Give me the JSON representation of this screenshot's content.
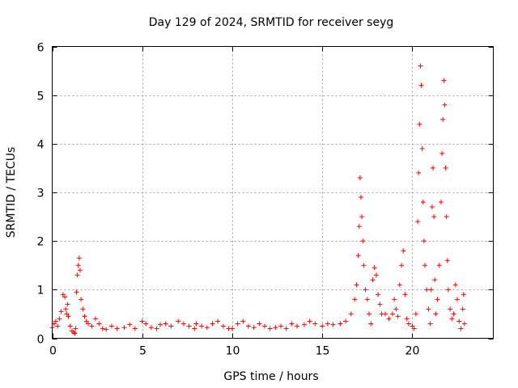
{
  "chart_data": {
    "type": "scatter",
    "title": "Day 129 of 2024, SRMTID for receiver seyg",
    "xlabel": "GPS time / hours",
    "ylabel": "SRMTID / TECUs",
    "xlim": [
      0,
      24.5
    ],
    "ylim": [
      0,
      6
    ],
    "xticks": [
      0,
      5,
      10,
      15,
      20
    ],
    "yticks": [
      0,
      1,
      2,
      3,
      4,
      5,
      6
    ],
    "xtick_labels": [
      "0",
      "5",
      "10",
      "15",
      "20"
    ],
    "ytick_labels": [
      "0",
      "1",
      "2",
      "3",
      "4",
      "5",
      "6"
    ],
    "grid": true,
    "marker": "plus",
    "color": "#ff0000",
    "series": [
      {
        "name": "SRMTID",
        "points": [
          [
            0.0,
            0.22
          ],
          [
            0.1,
            0.3
          ],
          [
            0.2,
            0.35
          ],
          [
            0.3,
            0.25
          ],
          [
            0.4,
            0.4
          ],
          [
            0.5,
            0.55
          ],
          [
            0.6,
            0.9
          ],
          [
            0.7,
            0.85
          ],
          [
            0.75,
            0.6
          ],
          [
            0.8,
            0.5
          ],
          [
            0.85,
            0.7
          ],
          [
            0.9,
            0.45
          ],
          [
            1.0,
            0.25
          ],
          [
            1.1,
            0.15
          ],
          [
            1.2,
            0.12
          ],
          [
            1.25,
            0.1
          ],
          [
            1.3,
            0.2
          ],
          [
            1.35,
            0.95
          ],
          [
            1.4,
            1.3
          ],
          [
            1.45,
            1.5
          ],
          [
            1.5,
            1.65
          ],
          [
            1.55,
            1.4
          ],
          [
            1.6,
            0.8
          ],
          [
            1.7,
            0.6
          ],
          [
            1.8,
            0.45
          ],
          [
            1.9,
            0.35
          ],
          [
            2.0,
            0.3
          ],
          [
            2.2,
            0.25
          ],
          [
            2.4,
            0.4
          ],
          [
            2.6,
            0.3
          ],
          [
            2.8,
            0.2
          ],
          [
            3.0,
            0.18
          ],
          [
            3.3,
            0.25
          ],
          [
            3.6,
            0.2
          ],
          [
            4.0,
            0.22
          ],
          [
            4.3,
            0.28
          ],
          [
            4.6,
            0.2
          ],
          [
            5.0,
            0.35
          ],
          [
            5.2,
            0.3
          ],
          [
            5.5,
            0.22
          ],
          [
            5.8,
            0.2
          ],
          [
            6.0,
            0.28
          ],
          [
            6.3,
            0.3
          ],
          [
            6.6,
            0.25
          ],
          [
            7.0,
            0.35
          ],
          [
            7.3,
            0.3
          ],
          [
            7.6,
            0.25
          ],
          [
            7.9,
            0.2
          ],
          [
            8.0,
            0.3
          ],
          [
            8.3,
            0.25
          ],
          [
            8.6,
            0.22
          ],
          [
            8.9,
            0.3
          ],
          [
            9.2,
            0.35
          ],
          [
            9.5,
            0.25
          ],
          [
            9.8,
            0.2
          ],
          [
            10.0,
            0.2
          ],
          [
            10.3,
            0.3
          ],
          [
            10.6,
            0.35
          ],
          [
            10.9,
            0.25
          ],
          [
            11.2,
            0.22
          ],
          [
            11.5,
            0.3
          ],
          [
            11.8,
            0.25
          ],
          [
            12.1,
            0.2
          ],
          [
            12.4,
            0.22
          ],
          [
            12.7,
            0.25
          ],
          [
            13.0,
            0.2
          ],
          [
            13.3,
            0.3
          ],
          [
            13.6,
            0.25
          ],
          [
            14.0,
            0.28
          ],
          [
            14.3,
            0.35
          ],
          [
            14.6,
            0.3
          ],
          [
            15.0,
            0.25
          ],
          [
            15.3,
            0.3
          ],
          [
            15.6,
            0.28
          ],
          [
            16.0,
            0.3
          ],
          [
            16.3,
            0.35
          ],
          [
            16.6,
            0.5
          ],
          [
            16.8,
            0.8
          ],
          [
            16.9,
            1.1
          ],
          [
            17.0,
            1.7
          ],
          [
            17.05,
            2.3
          ],
          [
            17.1,
            3.3
          ],
          [
            17.15,
            2.9
          ],
          [
            17.2,
            2.5
          ],
          [
            17.25,
            2.0
          ],
          [
            17.3,
            1.5
          ],
          [
            17.4,
            1.0
          ],
          [
            17.5,
            0.8
          ],
          [
            17.6,
            0.5
          ],
          [
            17.7,
            0.3
          ],
          [
            17.8,
            1.2
          ],
          [
            17.9,
            1.45
          ],
          [
            18.0,
            1.3
          ],
          [
            18.1,
            0.9
          ],
          [
            18.2,
            0.7
          ],
          [
            18.3,
            0.5
          ],
          [
            18.5,
            0.5
          ],
          [
            18.7,
            0.4
          ],
          [
            18.9,
            0.5
          ],
          [
            19.0,
            0.8
          ],
          [
            19.1,
            0.6
          ],
          [
            19.2,
            0.45
          ],
          [
            19.3,
            1.1
          ],
          [
            19.4,
            1.5
          ],
          [
            19.5,
            1.8
          ],
          [
            19.6,
            0.9
          ],
          [
            19.7,
            0.4
          ],
          [
            19.8,
            0.3
          ],
          [
            20.0,
            0.25
          ],
          [
            20.1,
            0.2
          ],
          [
            20.2,
            0.5
          ],
          [
            20.3,
            2.4
          ],
          [
            20.35,
            3.4
          ],
          [
            20.4,
            4.4
          ],
          [
            20.45,
            5.6
          ],
          [
            20.5,
            5.2
          ],
          [
            20.55,
            3.9
          ],
          [
            20.6,
            2.8
          ],
          [
            20.65,
            2.0
          ],
          [
            20.7,
            1.5
          ],
          [
            20.8,
            1.0
          ],
          [
            20.9,
            0.6
          ],
          [
            21.0,
            0.3
          ],
          [
            21.05,
            1.0
          ],
          [
            21.1,
            2.7
          ],
          [
            21.15,
            3.5
          ],
          [
            21.2,
            2.5
          ],
          [
            21.25,
            1.2
          ],
          [
            21.3,
            0.5
          ],
          [
            21.4,
            0.8
          ],
          [
            21.5,
            1.5
          ],
          [
            21.6,
            2.8
          ],
          [
            21.65,
            3.8
          ],
          [
            21.7,
            4.5
          ],
          [
            21.75,
            5.3
          ],
          [
            21.8,
            4.8
          ],
          [
            21.85,
            3.5
          ],
          [
            21.9,
            2.5
          ],
          [
            21.95,
            1.6
          ],
          [
            22.0,
            1.0
          ],
          [
            22.1,
            0.6
          ],
          [
            22.2,
            0.4
          ],
          [
            22.3,
            0.5
          ],
          [
            22.4,
            1.1
          ],
          [
            22.5,
            0.8
          ],
          [
            22.6,
            0.35
          ],
          [
            22.7,
            0.2
          ],
          [
            22.8,
            0.6
          ],
          [
            22.85,
            0.9
          ],
          [
            22.9,
            0.3
          ]
        ]
      }
    ]
  }
}
